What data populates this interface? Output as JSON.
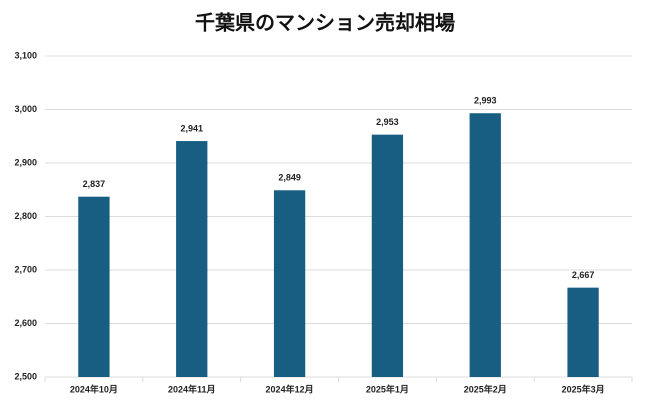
{
  "chart_data": {
    "type": "bar",
    "title": "千葉県のマンション売却相場",
    "categories": [
      "2024年10月",
      "2024年11月",
      "2024年12月",
      "2025年1月",
      "2025年2月",
      "2025年3月"
    ],
    "values": [
      2837,
      2941,
      2849,
      2953,
      2993,
      2667
    ],
    "value_labels": [
      "2,837",
      "2,941",
      "2,849",
      "2,953",
      "2,993",
      "2,667"
    ],
    "color": "#175e82",
    "ylim": [
      2500,
      3100
    ],
    "yticks": [
      {
        "value": 2500,
        "label": "2,500"
      },
      {
        "value": 2600,
        "label": "2,600"
      },
      {
        "value": 2700,
        "label": "2,700"
      },
      {
        "value": 2800,
        "label": "2,800"
      },
      {
        "value": 2900,
        "label": "2,900"
      },
      {
        "value": 3000,
        "label": "3,000"
      },
      {
        "value": 3100,
        "label": "3,100"
      }
    ],
    "grid": true
  }
}
